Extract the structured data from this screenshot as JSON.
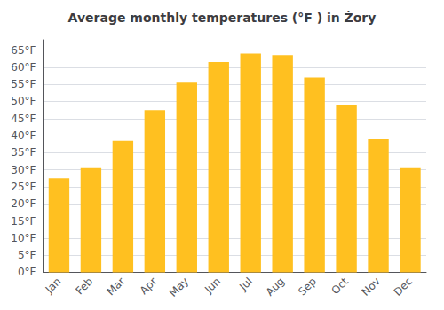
{
  "chart_data": {
    "type": "bar",
    "title": "Average monthly temperatures (°F ) in Żory",
    "categories": [
      "Jan",
      "Feb",
      "Mar",
      "Apr",
      "May",
      "Jun",
      "Jul",
      "Aug",
      "Sep",
      "Oct",
      "Nov",
      "Dec"
    ],
    "values": [
      27.5,
      30.5,
      38.5,
      47.5,
      55.5,
      61.5,
      64.0,
      63.5,
      57.0,
      49.0,
      39.0,
      30.5
    ],
    "color": "#FFC020",
    "ylim": [
      0,
      68
    ],
    "yticks": [
      {
        "value": 0,
        "label": "0°F"
      },
      {
        "value": 5,
        "label": "5°F"
      },
      {
        "value": 10,
        "label": "10°F"
      },
      {
        "value": 15,
        "label": "15°F"
      },
      {
        "value": 20,
        "label": "20°F"
      },
      {
        "value": 25,
        "label": "25°F"
      },
      {
        "value": 30,
        "label": "30°F"
      },
      {
        "value": 35,
        "label": "35°F"
      },
      {
        "value": 40,
        "label": "40°F"
      },
      {
        "value": 45,
        "label": "45°F"
      },
      {
        "value": 50,
        "label": "50°F"
      },
      {
        "value": 55,
        "label": "55°F"
      },
      {
        "value": 60,
        "label": "60°F"
      },
      {
        "value": 65,
        "label": "65°F"
      }
    ],
    "grid": true
  }
}
